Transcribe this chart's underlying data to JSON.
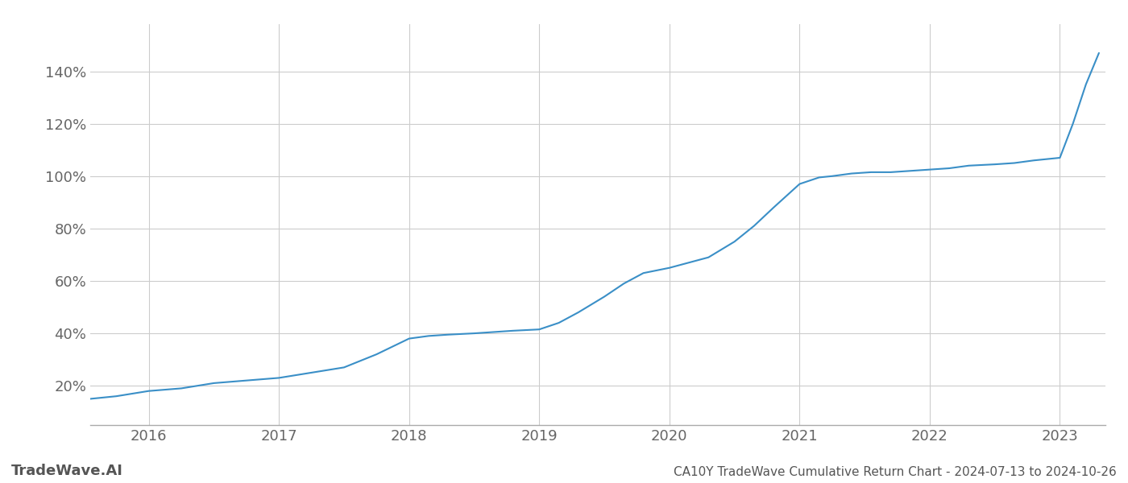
{
  "title": "CA10Y TradeWave Cumulative Return Chart - 2024-07-13 to 2024-10-26",
  "watermark": "TradeWave.AI",
  "line_color": "#3a8fc7",
  "background_color": "#ffffff",
  "grid_color": "#cccccc",
  "x_values": [
    2015.55,
    2015.75,
    2016.0,
    2016.25,
    2016.5,
    2016.75,
    2017.0,
    2017.25,
    2017.5,
    2017.75,
    2018.0,
    2018.15,
    2018.3,
    2018.5,
    2018.65,
    2018.8,
    2019.0,
    2019.15,
    2019.3,
    2019.5,
    2019.65,
    2019.8,
    2020.0,
    2020.15,
    2020.3,
    2020.5,
    2020.65,
    2020.8,
    2021.0,
    2021.15,
    2021.25,
    2021.4,
    2021.55,
    2021.7,
    2021.85,
    2022.0,
    2022.15,
    2022.3,
    2022.5,
    2022.65,
    2022.8,
    2023.0,
    2023.1,
    2023.2,
    2023.3
  ],
  "y_values": [
    15,
    16,
    18,
    19,
    21,
    22,
    23,
    25,
    27,
    32,
    38,
    39,
    39.5,
    40,
    40.5,
    41,
    41.5,
    44,
    48,
    54,
    59,
    63,
    65,
    67,
    69,
    75,
    81,
    88,
    97,
    99.5,
    100,
    101,
    101.5,
    101.5,
    102,
    102.5,
    103,
    104,
    104.5,
    105,
    106,
    107,
    120,
    135,
    147
  ],
  "xlim": [
    2015.55,
    2023.35
  ],
  "ylim": [
    5,
    158
  ],
  "yticks": [
    20,
    40,
    60,
    80,
    100,
    120,
    140
  ],
  "xticks": [
    2016,
    2017,
    2018,
    2019,
    2020,
    2021,
    2022,
    2023
  ],
  "title_fontsize": 11,
  "tick_fontsize": 13,
  "watermark_fontsize": 13
}
